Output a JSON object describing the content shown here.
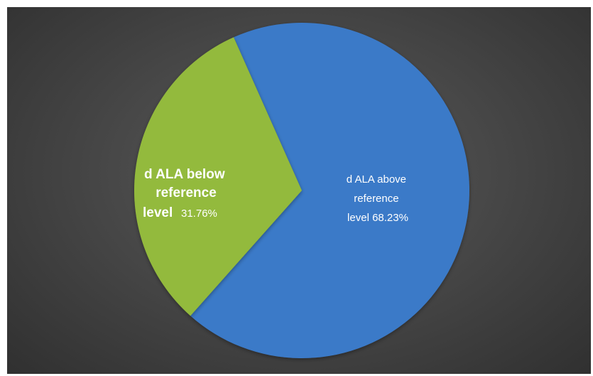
{
  "chart_data": {
    "type": "pie",
    "slices": [
      {
        "lines": [
          "d ALA above",
          "reference",
          "level 68.23%"
        ],
        "value": 68.23,
        "color": "#3B7AC8"
      },
      {
        "lines": [
          "d ALA below",
          "reference",
          "level",
          "31.76%"
        ],
        "value": 31.76,
        "color": "#93BA3C"
      }
    ]
  }
}
